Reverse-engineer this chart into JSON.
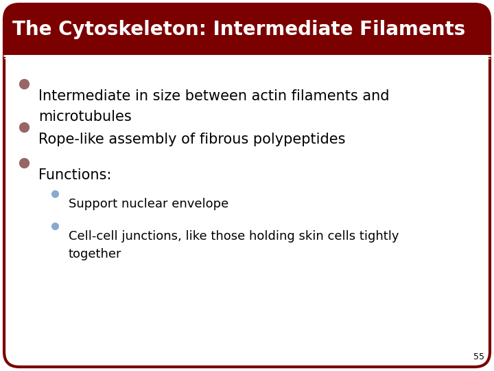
{
  "title": "The Cytoskeleton: Intermediate Filaments",
  "title_bg_color": "#7B0000",
  "title_text_color": "#FFFFFF",
  "slide_bg_color": "#FFFFFF",
  "border_color": "#7B0000",
  "bullet_color": "#996666",
  "sub_bullet_color": "#88AACC",
  "bullet_points": [
    "Intermediate in size between actin filaments and\nmicrotubules",
    "Rope-like assembly of fibrous polypeptides",
    "Functions:"
  ],
  "sub_bullets": [
    "Support nuclear envelope",
    "Cell-cell junctions, like those holding skin cells tightly\ntogether"
  ],
  "page_number": "55",
  "font_size_title": 20,
  "font_size_body": 15,
  "font_size_sub": 13,
  "font_size_page": 9
}
